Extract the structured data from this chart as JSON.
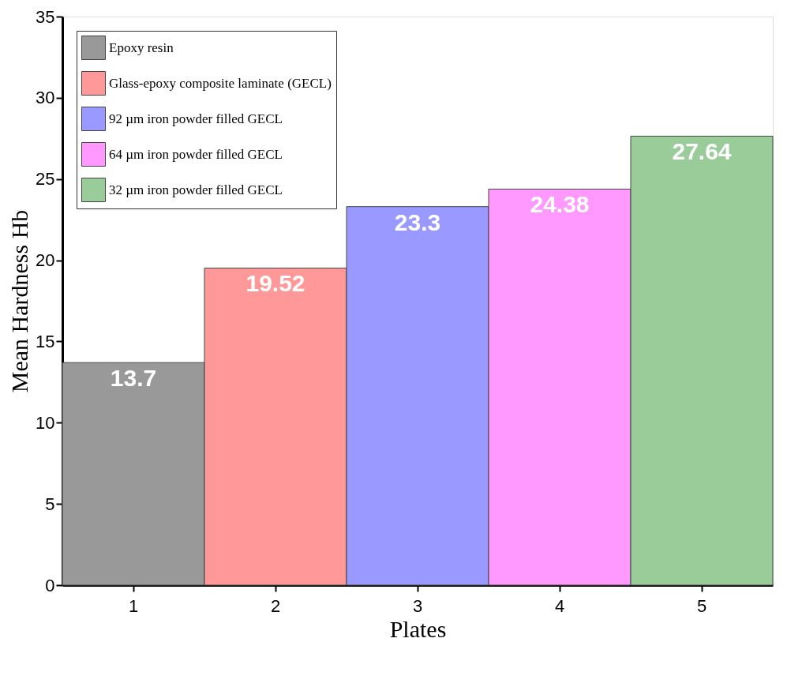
{
  "chart_data": {
    "type": "bar",
    "xlabel": "Plates",
    "ylabel": "Mean Hardness Hb",
    "categories": [
      "1",
      "2",
      "3",
      "4",
      "5"
    ],
    "series": [
      {
        "name": "Epoxy resin",
        "color": "#999999",
        "values": [
          13.7,
          null,
          null,
          null,
          null
        ]
      },
      {
        "name": "Glass-epoxy composite laminate (GECL)",
        "color": "#ff9999",
        "values": [
          null,
          19.52,
          null,
          null,
          null
        ]
      },
      {
        "name": "92 µm iron powder filled GECL",
        "color": "#9999ff",
        "values": [
          null,
          null,
          23.3,
          null,
          null
        ]
      },
      {
        "name": "64 µm iron powder filled GECL",
        "color": "#ff99ff",
        "values": [
          null,
          null,
          null,
          24.38,
          null
        ]
      },
      {
        "name": "32 µm iron powder filled GECL",
        "color": "#99cc99",
        "values": [
          null,
          null,
          null,
          null,
          27.64
        ]
      }
    ],
    "ylim": [
      0,
      35
    ],
    "yticks": [
      0,
      5,
      10,
      15,
      20,
      25,
      30,
      35
    ],
    "grid": false,
    "legend": "top left",
    "data_labels": true
  }
}
